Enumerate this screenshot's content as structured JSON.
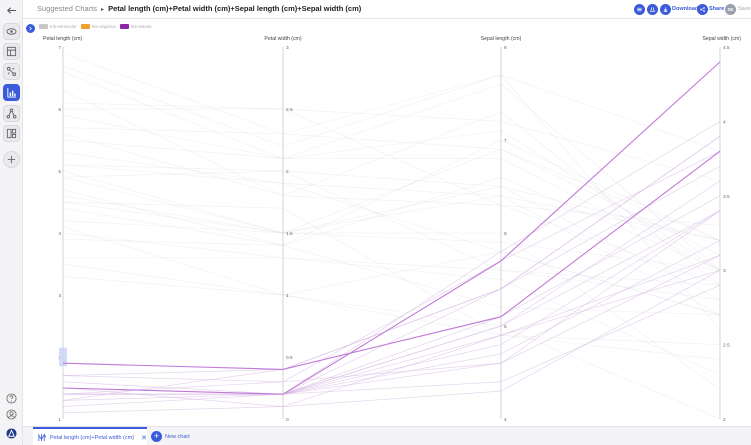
{
  "header": {
    "breadcrumb_root": "Suggested Charts",
    "breadcrumb_separator": "▸",
    "chart_title": "Petal length (cm)+Petal width (cm)+Sepal length (cm)+Sepal width (cm)",
    "download_label": "Download",
    "share_label": "Share",
    "avatar_initials": "SE",
    "save_label": "Save"
  },
  "sidebar": {
    "items": [
      {
        "icon": "back-arrow-icon"
      },
      {
        "icon": "eye-icon"
      },
      {
        "icon": "table-icon"
      },
      {
        "icon": "transform-icon"
      },
      {
        "icon": "bar-chart-icon",
        "active": true
      },
      {
        "icon": "graph-icon"
      },
      {
        "icon": "layout-icon"
      },
      {
        "icon": "plus-icon"
      }
    ],
    "bottom": [
      {
        "icon": "help-icon"
      },
      {
        "icon": "user-icon"
      },
      {
        "icon": "app-logo-icon"
      }
    ]
  },
  "tabs": {
    "active_label": "Petal length (cm)+Petal width (cm)+Sepal length (cm)+Sepal width (cm)",
    "new_chart_label": "New chart"
  },
  "chart_data": {
    "type": "parallel-coordinates",
    "axes": [
      {
        "label": "Petal length (cm)",
        "ticks": [
          "1",
          "2",
          "3",
          "4",
          "5",
          "6",
          "7"
        ],
        "range": [
          1,
          7
        ]
      },
      {
        "label": "Petal width (cm)",
        "ticks": [
          "0",
          "0.5",
          "1",
          "1.5",
          "2",
          "2.5",
          "3"
        ],
        "range": [
          0,
          3
        ]
      },
      {
        "label": "Sepal length (cm)",
        "ticks": [
          "4",
          "5",
          "6",
          "7",
          "8"
        ],
        "range": [
          4,
          8
        ]
      },
      {
        "label": "Sepal width (cm)",
        "ticks": [
          "2",
          "2.5",
          "3",
          "3.5",
          "4",
          "4.5"
        ],
        "range": [
          2,
          4.5
        ]
      }
    ],
    "legend": [
      {
        "name": "Iris-versicolor",
        "color": "#c8c8c8"
      },
      {
        "name": "Iris-virginica",
        "color": "#f0a030"
      },
      {
        "name": "Iris-setosa",
        "color": "#8e24aa"
      }
    ],
    "highlighted_series": "Iris-setosa",
    "highlighted_lines": [
      [
        1.9,
        0.4,
        5.1,
        3.8
      ],
      [
        1.5,
        0.2,
        5.7,
        4.4
      ]
    ],
    "faint_lines": [
      [
        1.4,
        0.2,
        5.1,
        3.5
      ],
      [
        1.4,
        0.2,
        4.9,
        3.0
      ],
      [
        1.3,
        0.2,
        4.7,
        3.2
      ],
      [
        1.5,
        0.2,
        4.6,
        3.1
      ],
      [
        1.4,
        0.2,
        5.0,
        3.6
      ],
      [
        1.7,
        0.4,
        5.4,
        3.9
      ],
      [
        1.4,
        0.3,
        4.6,
        3.4
      ],
      [
        1.5,
        0.2,
        5.0,
        3.4
      ],
      [
        1.4,
        0.2,
        4.4,
        2.9
      ],
      [
        1.5,
        0.1,
        4.9,
        3.1
      ],
      [
        1.5,
        0.2,
        5.4,
        3.7
      ],
      [
        1.6,
        0.2,
        4.8,
        3.4
      ],
      [
        1.1,
        0.1,
        4.3,
        3.0
      ],
      [
        1.2,
        0.2,
        5.8,
        4.0
      ],
      [
        1.3,
        0.4,
        5.4,
        3.9
      ],
      [
        1.7,
        0.3,
        5.7,
        3.8
      ],
      [
        4.7,
        1.4,
        7.0,
        3.2
      ],
      [
        4.5,
        1.5,
        6.4,
        3.2
      ],
      [
        4.9,
        1.5,
        6.9,
        3.1
      ],
      [
        4.0,
        1.3,
        5.5,
        2.3
      ],
      [
        4.6,
        1.5,
        6.5,
        2.8
      ],
      [
        3.3,
        1.0,
        4.9,
        2.4
      ],
      [
        3.9,
        1.4,
        5.2,
        2.7
      ],
      [
        3.5,
        1.0,
        5.0,
        2.0
      ],
      [
        4.2,
        1.5,
        5.9,
        3.0
      ],
      [
        4.4,
        1.4,
        6.6,
        3.0
      ],
      [
        3.6,
        1.3,
        5.6,
        2.9
      ],
      [
        4.1,
        1.0,
        5.8,
        2.7
      ],
      [
        6.0,
        2.5,
        6.3,
        3.3
      ],
      [
        5.1,
        1.9,
        5.8,
        2.7
      ],
      [
        5.9,
        2.1,
        7.1,
        3.0
      ],
      [
        5.6,
        1.8,
        6.3,
        2.9
      ],
      [
        6.6,
        2.1,
        7.6,
        3.0
      ],
      [
        4.5,
        1.7,
        4.9,
        2.5
      ],
      [
        6.3,
        1.8,
        7.3,
        2.9
      ],
      [
        6.1,
        2.5,
        7.2,
        3.6
      ],
      [
        5.1,
        2.0,
        6.5,
        3.2
      ],
      [
        5.3,
        1.9,
        6.4,
        2.7
      ],
      [
        5.5,
        2.1,
        6.8,
        3.0
      ],
      [
        6.7,
        2.2,
        7.7,
        3.8
      ],
      [
        6.9,
        2.3,
        7.7,
        2.6
      ],
      [
        5.0,
        1.5,
        6.0,
        2.2
      ],
      [
        5.7,
        2.3,
        6.9,
        3.2
      ],
      [
        4.9,
        2.0,
        5.6,
        2.8
      ]
    ]
  }
}
